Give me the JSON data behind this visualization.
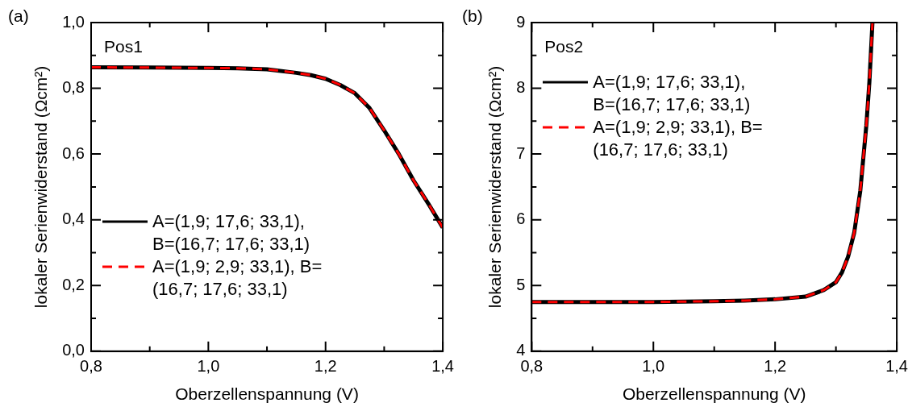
{
  "chart_data": [
    {
      "type": "line",
      "xlabel": "Oberzellenspannung (V)",
      "ylabel": "lokaler Serienwiderstand (Ωcm²)",
      "annotations": [
        "(a)",
        "Pos1"
      ],
      "legend": "bottom left",
      "xlim": [
        0.8,
        1.4
      ],
      "ylim": [
        0,
        1
      ],
      "xticks": [
        {
          "value": 0.8,
          "label": "0,8"
        },
        {
          "value": 0.9,
          "label": null
        },
        {
          "value": 1.0,
          "label": "1,0"
        },
        {
          "value": 1.1,
          "label": null
        },
        {
          "value": 1.2,
          "label": "1,2"
        },
        {
          "value": 1.3,
          "label": null
        },
        {
          "value": 1.4,
          "label": "1,4"
        }
      ],
      "yticks": [
        {
          "value": 0,
          "label": "0,0"
        },
        {
          "value": 0.1,
          "label": null
        },
        {
          "value": 0.2,
          "label": "0,2"
        },
        {
          "value": 0.3,
          "label": null
        },
        {
          "value": 0.4,
          "label": "0,4"
        },
        {
          "value": 0.5,
          "label": null
        },
        {
          "value": 0.6,
          "label": "0,6"
        },
        {
          "value": 0.7,
          "label": null
        },
        {
          "value": 0.8,
          "label": "0,8"
        },
        {
          "value": 0.9,
          "label": null
        },
        {
          "value": 1.0,
          "label": "1,0"
        }
      ],
      "series": [
        {
          "name": "A=(1,9; 17,6; 33,1), B=(16,7; 17,6; 33,1)",
          "color": "#000000",
          "line_style": "solid",
          "x": [
            0.8,
            0.9,
            1.0,
            1.05,
            1.1,
            1.15,
            1.175,
            1.2,
            1.225,
            1.25,
            1.275,
            1.3,
            1.325,
            1.35,
            1.375,
            1.4
          ],
          "values": [
            0.864,
            0.863,
            0.862,
            0.861,
            0.858,
            0.847,
            0.84,
            0.829,
            0.81,
            0.785,
            0.74,
            0.672,
            0.6,
            0.52,
            0.45,
            0.376
          ]
        },
        {
          "name": "A=(1,9; 2,9; 33,1), B=(16,7; 17,6; 33,1)",
          "color": "#ff0000",
          "line_style": "dashed",
          "x": [
            0.8,
            0.9,
            1.0,
            1.05,
            1.1,
            1.15,
            1.175,
            1.2,
            1.225,
            1.25,
            1.275,
            1.3,
            1.325,
            1.35,
            1.375,
            1.4
          ],
          "values": [
            0.864,
            0.863,
            0.862,
            0.861,
            0.858,
            0.847,
            0.84,
            0.829,
            0.81,
            0.785,
            0.74,
            0.672,
            0.6,
            0.52,
            0.45,
            0.376
          ]
        }
      ]
    },
    {
      "type": "line",
      "xlabel": "Oberzellenspannung (V)",
      "ylabel": "lokaler Serienwiderstand (Ωcm²)",
      "annotations": [
        "(b)",
        "Pos2"
      ],
      "legend": "top left",
      "xlim": [
        0.8,
        1.4
      ],
      "ylim": [
        4,
        9
      ],
      "xticks": [
        {
          "value": 0.8,
          "label": "0,8"
        },
        {
          "value": 0.9,
          "label": null
        },
        {
          "value": 1.0,
          "label": "1,0"
        },
        {
          "value": 1.1,
          "label": null
        },
        {
          "value": 1.2,
          "label": "1,2"
        },
        {
          "value": 1.3,
          "label": null
        },
        {
          "value": 1.4,
          "label": "1,4"
        }
      ],
      "yticks": [
        4,
        {
          "value": 4.5,
          "label": null
        },
        5,
        {
          "value": 5.5,
          "label": null
        },
        6,
        {
          "value": 6.5,
          "label": null
        },
        7,
        {
          "value": 7.5,
          "label": null
        },
        8,
        {
          "value": 8.5,
          "label": null
        },
        9
      ],
      "series": [
        {
          "name": "A=(1,9; 17,6; 33,1), B=(16,7; 17,6; 33,1)",
          "color": "#000000",
          "line_style": "solid",
          "x": [
            0.8,
            0.9,
            1.0,
            1.1,
            1.15,
            1.2,
            1.25,
            1.28,
            1.3,
            1.31,
            1.32,
            1.33,
            1.34,
            1.35,
            1.355,
            1.36
          ],
          "values": [
            4.75,
            4.75,
            4.75,
            4.76,
            4.77,
            4.79,
            4.83,
            4.93,
            5.05,
            5.2,
            5.44,
            5.8,
            6.44,
            7.44,
            8.1,
            9.0
          ]
        },
        {
          "name": "A=(1,9; 2,9; 33,1), B=(16,7; 17,6; 33,1)",
          "color": "#ff0000",
          "line_style": "dashed",
          "x": [
            0.8,
            0.9,
            1.0,
            1.1,
            1.15,
            1.2,
            1.25,
            1.28,
            1.3,
            1.31,
            1.32,
            1.33,
            1.34,
            1.35,
            1.355,
            1.36
          ],
          "values": [
            4.75,
            4.75,
            4.75,
            4.76,
            4.77,
            4.79,
            4.83,
            4.93,
            5.05,
            5.2,
            5.44,
            5.8,
            6.44,
            7.44,
            8.1,
            9.0
          ]
        }
      ]
    }
  ]
}
